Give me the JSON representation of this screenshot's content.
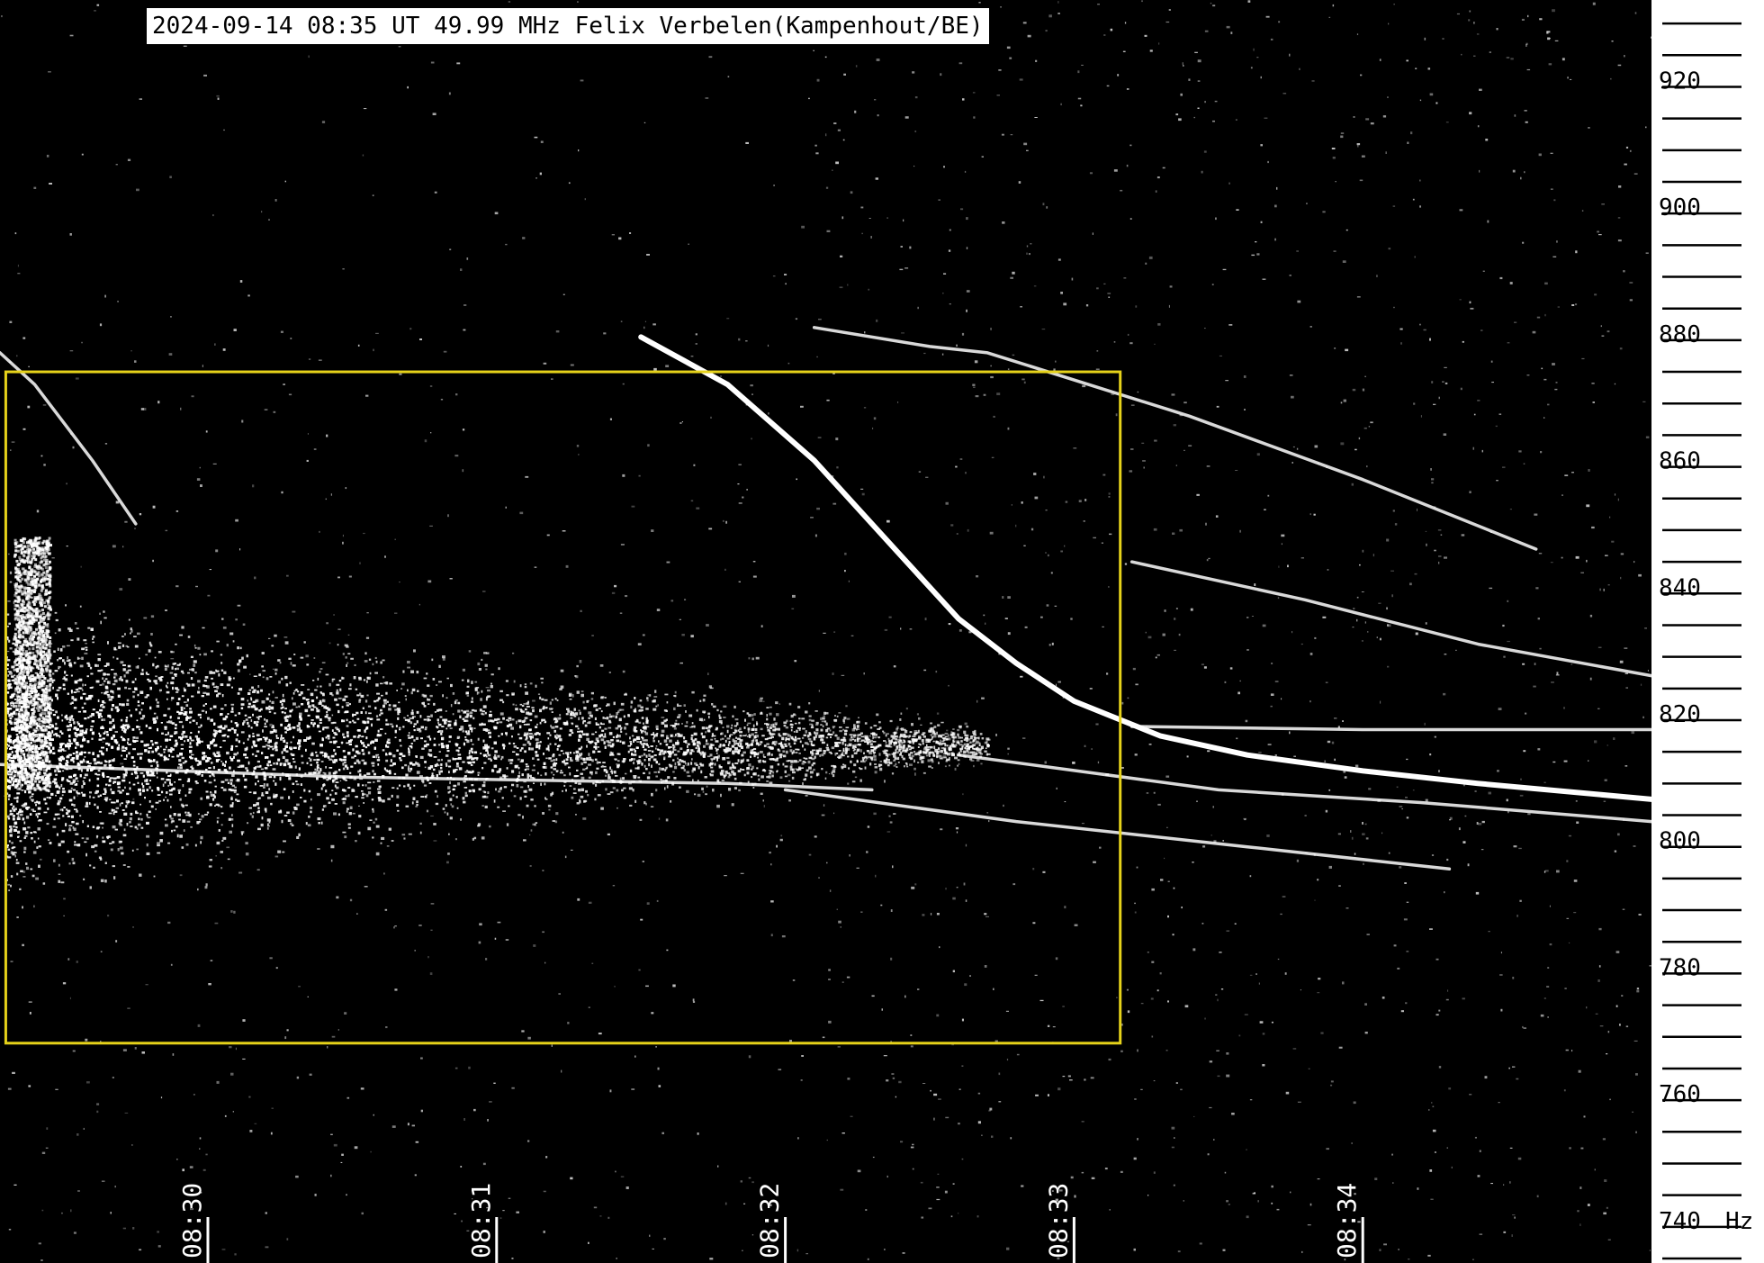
{
  "title": "2024-09-14 08:35 UT 49.99 MHz Felix Verbelen(Kampenhout/BE)",
  "colors": {
    "background": "#000000",
    "signal": "#ffffff",
    "highlight_box": "#e6d21a",
    "axis_panel": "#ffffff",
    "axis_ink": "#000000"
  },
  "chart_data": {
    "type": "heatmap",
    "title": "2024-09-14 08:35 UT 49.99 MHz Felix Verbelen(Kampenhout/BE)",
    "xlabel": "",
    "ylabel": "",
    "y_unit": "Hz",
    "x_ticks": [
      "08:30",
      "08:31",
      "08:32",
      "08:33",
      "08:34"
    ],
    "x_tick_minutes": [
      30,
      31,
      32,
      33,
      34
    ],
    "xlim_minutes": [
      29.28,
      35.0
    ],
    "y_ticks": [
      920,
      900,
      880,
      860,
      840,
      820,
      800,
      780,
      760,
      740
    ],
    "ylim": [
      734,
      932
    ],
    "y_minor_step": 5,
    "highlight_box": {
      "x_minutes": [
        29.3,
        33.16
      ],
      "y_hz": [
        768,
        874
      ]
    },
    "noise_cloud": {
      "x_minutes": [
        29.3,
        32.7
      ],
      "center_hz": 815
    },
    "traces": [
      {
        "name": "",
        "points": [
          [
            29.28,
            877
          ],
          [
            29.4,
            872
          ],
          [
            29.6,
            860
          ],
          [
            29.75,
            850
          ]
        ]
      },
      {
        "name": "",
        "points": [
          [
            31.5,
            879.5
          ],
          [
            31.8,
            872
          ],
          [
            32.1,
            860
          ],
          [
            32.4,
            845
          ],
          [
            32.6,
            835
          ],
          [
            32.8,
            828
          ],
          [
            33.0,
            822
          ],
          [
            33.3,
            816.5
          ],
          [
            33.6,
            813.5
          ],
          [
            34.0,
            811
          ],
          [
            34.4,
            809
          ],
          [
            35.0,
            806.5
          ]
        ]
      },
      {
        "name": "",
        "points": [
          [
            32.1,
            881
          ],
          [
            32.5,
            878
          ],
          [
            32.7,
            877
          ],
          [
            33.4,
            867
          ],
          [
            34.0,
            857
          ],
          [
            34.6,
            846
          ]
        ]
      },
      {
        "name": "",
        "points": [
          [
            33.2,
            844
          ],
          [
            33.8,
            838
          ],
          [
            34.4,
            831
          ],
          [
            35.0,
            826
          ]
        ]
      },
      {
        "name": "",
        "points": [
          [
            32.6,
            813.5
          ],
          [
            33.5,
            808
          ],
          [
            34.2,
            806
          ],
          [
            35.0,
            803
          ]
        ]
      },
      {
        "name": "",
        "points": [
          [
            32.0,
            808
          ],
          [
            32.8,
            803
          ],
          [
            33.6,
            799
          ],
          [
            34.3,
            795.5
          ]
        ]
      },
      {
        "name": "",
        "points": [
          [
            33.2,
            818
          ],
          [
            34.0,
            817.5
          ],
          [
            35.0,
            817.5
          ]
        ]
      },
      {
        "name": "",
        "points": [
          [
            29.28,
            812
          ],
          [
            30.5,
            810
          ],
          [
            31.8,
            809
          ],
          [
            32.3,
            808
          ]
        ]
      }
    ]
  }
}
